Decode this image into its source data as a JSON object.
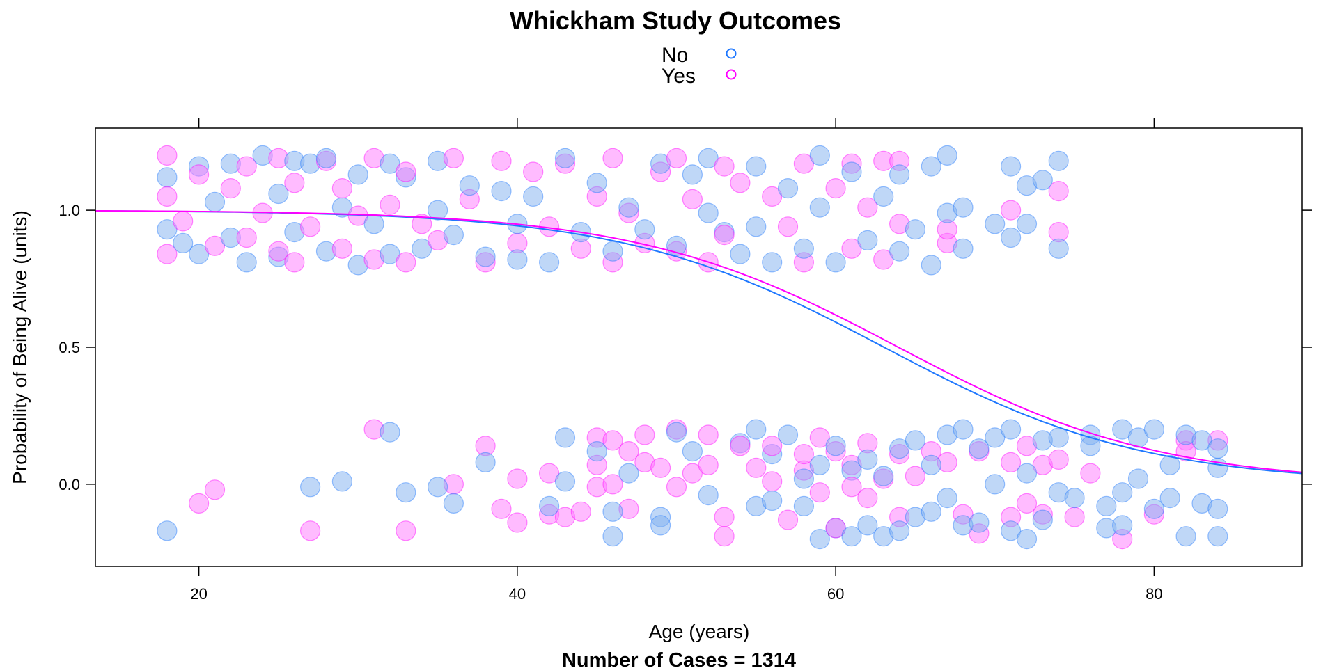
{
  "chart_data": {
    "type": "scatter",
    "title": "Whickham Study Outcomes",
    "xlabel": "Age (years)",
    "ylabel": "Probability of Being Alive (units)",
    "caption": "Number of Cases =  1314",
    "xlim": [
      13.5,
      89.3
    ],
    "ylim": [
      -0.3,
      1.3
    ],
    "x_ticks": [
      20,
      40,
      60,
      80
    ],
    "y_ticks": [
      0.0,
      0.5,
      1.0
    ],
    "x_tick_labels": [
      "20",
      "40",
      "60",
      "80"
    ],
    "y_tick_labels": [
      "0.0",
      "0.5",
      "1.0"
    ],
    "legend": {
      "position": "top-center",
      "entries": [
        {
          "label": "No",
          "color": "#1f78ff"
        },
        {
          "label": "Yes",
          "color": "#ff00ff"
        }
      ]
    },
    "series": [
      {
        "name": "No",
        "color": "#1f78ff",
        "point_fill": "#7fb0f0",
        "fitted_curve": {
          "model": "logistic",
          "intercept": 7.69,
          "slope": -0.122
        },
        "points": [
          [
            18,
            0.93
          ],
          [
            18,
            1.12
          ],
          [
            19,
            0.88
          ],
          [
            20,
            0.84
          ],
          [
            20,
            1.16
          ],
          [
            21,
            1.03
          ],
          [
            22,
            0.9
          ],
          [
            22,
            1.17
          ],
          [
            23,
            0.81
          ],
          [
            24,
            1.2
          ],
          [
            25,
            0.83
          ],
          [
            25,
            1.06
          ],
          [
            26,
            0.92
          ],
          [
            26,
            1.18
          ],
          [
            27,
            1.17
          ],
          [
            28,
            0.85
          ],
          [
            28,
            1.19
          ],
          [
            29,
            1.01
          ],
          [
            30,
            0.8
          ],
          [
            30,
            1.13
          ],
          [
            31,
            0.95
          ],
          [
            32,
            0.84
          ],
          [
            32,
            1.17
          ],
          [
            33,
            1.12
          ],
          [
            34,
            0.86
          ],
          [
            35,
            1.0
          ],
          [
            35,
            1.18
          ],
          [
            36,
            0.91
          ],
          [
            37,
            1.09
          ],
          [
            38,
            0.83
          ],
          [
            39,
            1.07
          ],
          [
            40,
            0.82
          ],
          [
            40,
            0.95
          ],
          [
            41,
            1.05
          ],
          [
            42,
            0.81
          ],
          [
            43,
            1.19
          ],
          [
            44,
            0.92
          ],
          [
            45,
            1.1
          ],
          [
            46,
            0.85
          ],
          [
            47,
            1.01
          ],
          [
            48,
            0.93
          ],
          [
            49,
            1.17
          ],
          [
            50,
            0.87
          ],
          [
            51,
            1.13
          ],
          [
            52,
            0.99
          ],
          [
            52,
            1.19
          ],
          [
            53,
            0.92
          ],
          [
            54,
            0.84
          ],
          [
            55,
            1.16
          ],
          [
            55,
            0.94
          ],
          [
            56,
            0.81
          ],
          [
            57,
            1.08
          ],
          [
            58,
            0.86
          ],
          [
            59,
            1.2
          ],
          [
            59,
            1.01
          ],
          [
            60,
            0.81
          ],
          [
            61,
            1.14
          ],
          [
            62,
            0.89
          ],
          [
            63,
            1.05
          ],
          [
            64,
            0.85
          ],
          [
            64,
            1.13
          ],
          [
            65,
            0.93
          ],
          [
            66,
            0.8
          ],
          [
            66,
            1.16
          ],
          [
            67,
            1.2
          ],
          [
            67,
            0.99
          ],
          [
            68,
            0.86
          ],
          [
            68,
            1.01
          ],
          [
            70,
            0.95
          ],
          [
            71,
            0.9
          ],
          [
            71,
            1.16
          ],
          [
            72,
            0.95
          ],
          [
            72,
            1.09
          ],
          [
            73,
            1.11
          ],
          [
            74,
            0.86
          ],
          [
            74,
            1.18
          ],
          [
            18,
            -0.17
          ],
          [
            27,
            -0.01
          ],
          [
            29,
            0.01
          ],
          [
            32,
            0.19
          ],
          [
            33,
            -0.03
          ],
          [
            35,
            -0.01
          ],
          [
            36,
            -0.07
          ],
          [
            38,
            0.08
          ],
          [
            42,
            -0.08
          ],
          [
            43,
            0.01
          ],
          [
            43,
            0.17
          ],
          [
            45,
            0.12
          ],
          [
            46,
            -0.1
          ],
          [
            46,
            -0.19
          ],
          [
            47,
            0.04
          ],
          [
            49,
            -0.12
          ],
          [
            49,
            -0.15
          ],
          [
            50,
            0.19
          ],
          [
            51,
            0.12
          ],
          [
            52,
            -0.04
          ],
          [
            54,
            0.15
          ],
          [
            55,
            -0.08
          ],
          [
            55,
            0.2
          ],
          [
            56,
            0.11
          ],
          [
            56,
            -0.06
          ],
          [
            57,
            0.18
          ],
          [
            58,
            -0.08
          ],
          [
            58,
            0.02
          ],
          [
            59,
            -0.2
          ],
          [
            59,
            0.07
          ],
          [
            60,
            -0.16
          ],
          [
            60,
            0.14
          ],
          [
            61,
            0.05
          ],
          [
            61,
            -0.19
          ],
          [
            62,
            -0.15
          ],
          [
            62,
            0.09
          ],
          [
            63,
            -0.19
          ],
          [
            63,
            0.03
          ],
          [
            64,
            -0.17
          ],
          [
            64,
            0.13
          ],
          [
            65,
            0.16
          ],
          [
            65,
            -0.12
          ],
          [
            66,
            0.07
          ],
          [
            66,
            -0.1
          ],
          [
            67,
            0.18
          ],
          [
            67,
            -0.05
          ],
          [
            68,
            0.2
          ],
          [
            68,
            -0.15
          ],
          [
            69,
            0.13
          ],
          [
            69,
            -0.14
          ],
          [
            70,
            0.17
          ],
          [
            70,
            0.0
          ],
          [
            71,
            0.2
          ],
          [
            71,
            -0.17
          ],
          [
            72,
            0.04
          ],
          [
            72,
            -0.2
          ],
          [
            73,
            0.16
          ],
          [
            73,
            -0.13
          ],
          [
            74,
            0.17
          ],
          [
            74,
            -0.03
          ],
          [
            75,
            -0.05
          ],
          [
            76,
            0.18
          ],
          [
            76,
            0.14
          ],
          [
            77,
            -0.08
          ],
          [
            77,
            -0.16
          ],
          [
            78,
            0.2
          ],
          [
            78,
            -0.03
          ],
          [
            78,
            -0.15
          ],
          [
            79,
            0.17
          ],
          [
            79,
            0.02
          ],
          [
            80,
            0.2
          ],
          [
            80,
            -0.09
          ],
          [
            81,
            0.07
          ],
          [
            81,
            -0.05
          ],
          [
            82,
            0.18
          ],
          [
            82,
            -0.19
          ],
          [
            83,
            0.16
          ],
          [
            83,
            -0.07
          ],
          [
            84,
            0.13
          ],
          [
            84,
            -0.19
          ],
          [
            84,
            0.06
          ],
          [
            84,
            -0.09
          ]
        ]
      },
      {
        "name": "Yes",
        "color": "#ff00ff",
        "point_fill": "#ff77ff",
        "fitted_curve": {
          "model": "logistic",
          "intercept": 7.8,
          "slope": -0.122
        },
        "points": [
          [
            18,
            0.84
          ],
          [
            18,
            1.05
          ],
          [
            18,
            1.2
          ],
          [
            19,
            0.96
          ],
          [
            20,
            1.13
          ],
          [
            21,
            0.87
          ],
          [
            22,
            1.08
          ],
          [
            23,
            0.9
          ],
          [
            23,
            1.16
          ],
          [
            24,
            0.99
          ],
          [
            25,
            0.85
          ],
          [
            25,
            1.19
          ],
          [
            26,
            0.81
          ],
          [
            26,
            1.1
          ],
          [
            27,
            0.94
          ],
          [
            28,
            1.18
          ],
          [
            29,
            0.86
          ],
          [
            29,
            1.08
          ],
          [
            30,
            0.98
          ],
          [
            31,
            0.82
          ],
          [
            31,
            1.19
          ],
          [
            32,
            1.02
          ],
          [
            33,
            0.81
          ],
          [
            33,
            1.14
          ],
          [
            34,
            0.95
          ],
          [
            35,
            0.89
          ],
          [
            36,
            1.19
          ],
          [
            37,
            1.04
          ],
          [
            38,
            0.81
          ],
          [
            39,
            1.18
          ],
          [
            40,
            0.88
          ],
          [
            41,
            1.14
          ],
          [
            42,
            0.94
          ],
          [
            43,
            1.17
          ],
          [
            44,
            0.86
          ],
          [
            45,
            1.05
          ],
          [
            46,
            0.81
          ],
          [
            46,
            1.19
          ],
          [
            47,
            0.99
          ],
          [
            48,
            0.88
          ],
          [
            49,
            1.14
          ],
          [
            50,
            0.85
          ],
          [
            50,
            1.19
          ],
          [
            51,
            1.04
          ],
          [
            52,
            0.81
          ],
          [
            53,
            1.16
          ],
          [
            53,
            0.91
          ],
          [
            54,
            1.1
          ],
          [
            56,
            1.05
          ],
          [
            57,
            0.94
          ],
          [
            58,
            0.81
          ],
          [
            58,
            1.17
          ],
          [
            60,
            1.08
          ],
          [
            61,
            0.86
          ],
          [
            61,
            1.17
          ],
          [
            62,
            1.01
          ],
          [
            63,
            1.18
          ],
          [
            63,
            0.82
          ],
          [
            64,
            0.95
          ],
          [
            64,
            1.18
          ],
          [
            67,
            0.88
          ],
          [
            67,
            0.93
          ],
          [
            71,
            1.0
          ],
          [
            74,
            0.92
          ],
          [
            74,
            1.07
          ],
          [
            20,
            -0.07
          ],
          [
            21,
            -0.02
          ],
          [
            27,
            -0.17
          ],
          [
            31,
            0.2
          ],
          [
            33,
            -0.17
          ],
          [
            36,
            0.0
          ],
          [
            38,
            0.14
          ],
          [
            39,
            -0.09
          ],
          [
            40,
            0.02
          ],
          [
            40,
            -0.14
          ],
          [
            42,
            0.04
          ],
          [
            42,
            -0.11
          ],
          [
            43,
            -0.12
          ],
          [
            44,
            -0.1
          ],
          [
            45,
            0.17
          ],
          [
            45,
            0.07
          ],
          [
            45,
            -0.01
          ],
          [
            46,
            0.16
          ],
          [
            46,
            0.0
          ],
          [
            47,
            -0.09
          ],
          [
            47,
            0.12
          ],
          [
            48,
            0.18
          ],
          [
            48,
            0.08
          ],
          [
            49,
            0.06
          ],
          [
            50,
            -0.01
          ],
          [
            50,
            0.2
          ],
          [
            51,
            0.04
          ],
          [
            52,
            0.18
          ],
          [
            52,
            0.07
          ],
          [
            53,
            -0.12
          ],
          [
            53,
            -0.19
          ],
          [
            54,
            0.14
          ],
          [
            55,
            0.06
          ],
          [
            56,
            0.01
          ],
          [
            56,
            0.14
          ],
          [
            57,
            -0.13
          ],
          [
            58,
            0.05
          ],
          [
            58,
            0.11
          ],
          [
            59,
            0.17
          ],
          [
            59,
            -0.03
          ],
          [
            60,
            0.12
          ],
          [
            60,
            -0.16
          ],
          [
            61,
            0.07
          ],
          [
            61,
            -0.01
          ],
          [
            62,
            0.15
          ],
          [
            62,
            -0.05
          ],
          [
            63,
            0.02
          ],
          [
            64,
            0.11
          ],
          [
            64,
            -0.12
          ],
          [
            65,
            0.03
          ],
          [
            66,
            0.12
          ],
          [
            67,
            0.08
          ],
          [
            68,
            -0.11
          ],
          [
            69,
            0.12
          ],
          [
            69,
            -0.18
          ],
          [
            71,
            0.08
          ],
          [
            71,
            -0.12
          ],
          [
            72,
            0.14
          ],
          [
            72,
            -0.07
          ],
          [
            73,
            0.07
          ],
          [
            73,
            -0.11
          ],
          [
            74,
            0.09
          ],
          [
            75,
            -0.12
          ],
          [
            76,
            0.04
          ],
          [
            78,
            -0.2
          ],
          [
            80,
            -0.11
          ],
          [
            82,
            0.16
          ],
          [
            82,
            0.12
          ],
          [
            84,
            0.16
          ]
        ]
      }
    ]
  }
}
